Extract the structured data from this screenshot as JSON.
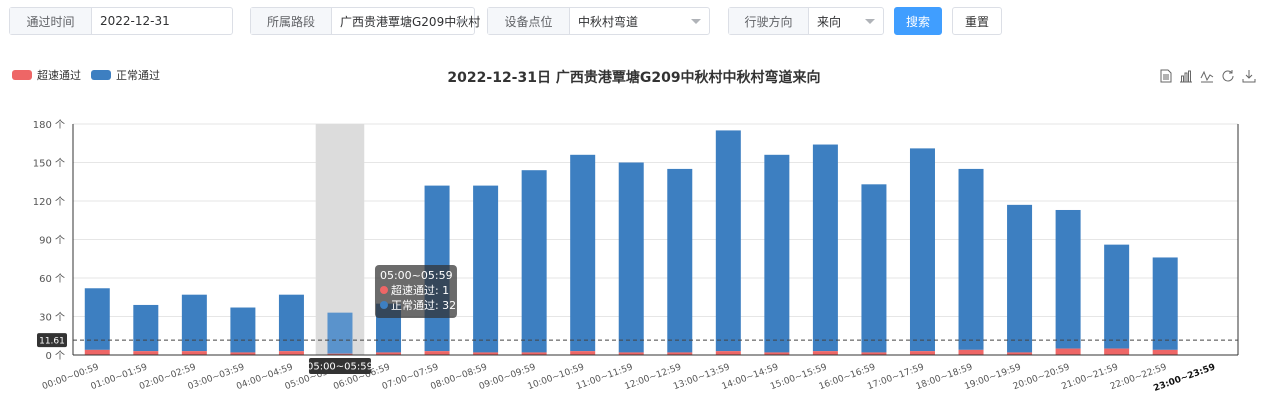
{
  "filters": {
    "time": {
      "label": "通过时间",
      "value": "2022-12-31"
    },
    "road": {
      "label": "所属路段",
      "value": "广西贵港覃塘G209中秋村"
    },
    "device": {
      "label": "设备点位",
      "value": "中秋村弯道"
    },
    "direction": {
      "label": "行驶方向",
      "value": "来向"
    },
    "search_label": "搜索",
    "reset_label": "重置"
  },
  "toolbox": [
    "data-view-icon",
    "bar-chart-icon",
    "line-chart-icon",
    "refresh-icon",
    "download-icon"
  ],
  "colors": {
    "speeding": "#ee6666",
    "normal": "#3d7fc1",
    "primary": "#409eff"
  },
  "chart_data": {
    "type": "bar",
    "stacked": true,
    "title": "2022-12-31日 广西贵港覃塘G209中秋村中秋村弯道来向",
    "categories": [
      "00:00~00:59",
      "01:00~01:59",
      "02:00~02:59",
      "03:00~03:59",
      "04:00~04:59",
      "05:00~05:59",
      "06:00~06:59",
      "07:00~07:59",
      "08:00~08:59",
      "09:00~09:59",
      "10:00~10:59",
      "11:00~11:59",
      "12:00~12:59",
      "13:00~13:59",
      "14:00~14:59",
      "15:00~15:59",
      "16:00~16:59",
      "17:00~17:59",
      "18:00~18:59",
      "19:00~19:59",
      "20:00~20:59",
      "21:00~21:59",
      "22:00~22:59",
      "23:00~23:59"
    ],
    "series": [
      {
        "name": "超速通过",
        "color": "#ee6666",
        "values": [
          4,
          3,
          3,
          2,
          3,
          1,
          2,
          3,
          2,
          2,
          3,
          2,
          2,
          3,
          2,
          3,
          2,
          3,
          4,
          2,
          5,
          5,
          4,
          0
        ]
      },
      {
        "name": "正常通过",
        "color": "#3d7fc1",
        "values": [
          48,
          36,
          44,
          35,
          44,
          32,
          38,
          129,
          130,
          142,
          153,
          148,
          143,
          172,
          154,
          161,
          131,
          158,
          141,
          115,
          108,
          81,
          72,
          0
        ]
      }
    ],
    "yticks": [
      0,
      30,
      60,
      90,
      120,
      150,
      180
    ],
    "yunit": "个",
    "ylim": [
      0,
      180
    ],
    "average_line": {
      "value": 11.61,
      "label": "11.61"
    },
    "grid": true,
    "legend_position": "top-left",
    "highlight_index": 5,
    "tooltip": {
      "title": "05:00~05:59",
      "rows": [
        {
          "label": "超速通过: 1",
          "color": "#ee6666"
        },
        {
          "label": "正常通过: 32",
          "color": "#3d7fc1"
        }
      ]
    },
    "axis_pointer_label": "05:00~05:59"
  }
}
